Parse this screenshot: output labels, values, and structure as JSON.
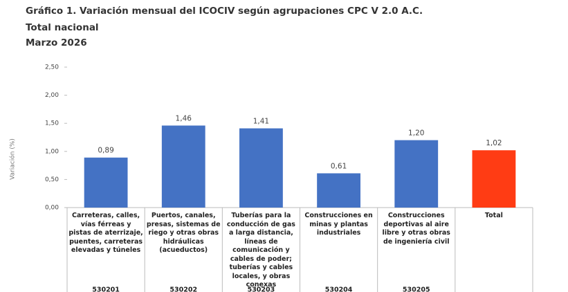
{
  "chart_data": {
    "type": "bar",
    "title": "Gráfico 1. Variación mensual del ICOCIV según agrupaciones CPC V 2.0 A.C.",
    "subtitle": [
      "Total nacional",
      "Marzo 2026"
    ],
    "y_label": "Variación (%)",
    "categories": [
      "Carreteras, calles, vías férreas y pistas de aterrizaje, puentes, carreteras elevadas y túneles",
      "Puertos, canales, presas, sistemas de riego y otras obras hidráulicas (acueductos)",
      "Tuberías para la conducción de gas a larga distancia, líneas de comunicación y cables de poder; tuberías y cables locales, y obras conexas",
      "Construcciones en minas y plantas industriales",
      "Construcciones deportivas al aire libre y otras obras de ingeniería civil",
      "Total"
    ],
    "codes": [
      "530201",
      "530202",
      "530203",
      "530204",
      "530205",
      null
    ],
    "values": [
      0.89,
      1.46,
      1.41,
      0.61,
      1.2,
      1.02
    ],
    "value_labels": [
      "0,89",
      "1,46",
      "1,41",
      "0,61",
      "1,20",
      "1,02"
    ],
    "colors": [
      "#4472c4",
      "#4472c4",
      "#4472c4",
      "#4472c4",
      "#4472c4",
      "#ff3c14"
    ],
    "ylim": [
      0,
      2.5
    ],
    "yticks": [
      {
        "value": 0,
        "label": "0,00"
      },
      {
        "value": 0.5,
        "label": "0,50"
      },
      {
        "value": 1,
        "label": "1,00"
      },
      {
        "value": 1.5,
        "label": "1,50"
      },
      {
        "value": 2,
        "label": "2,00"
      },
      {
        "value": 2.5,
        "label": "2,50"
      }
    ]
  }
}
